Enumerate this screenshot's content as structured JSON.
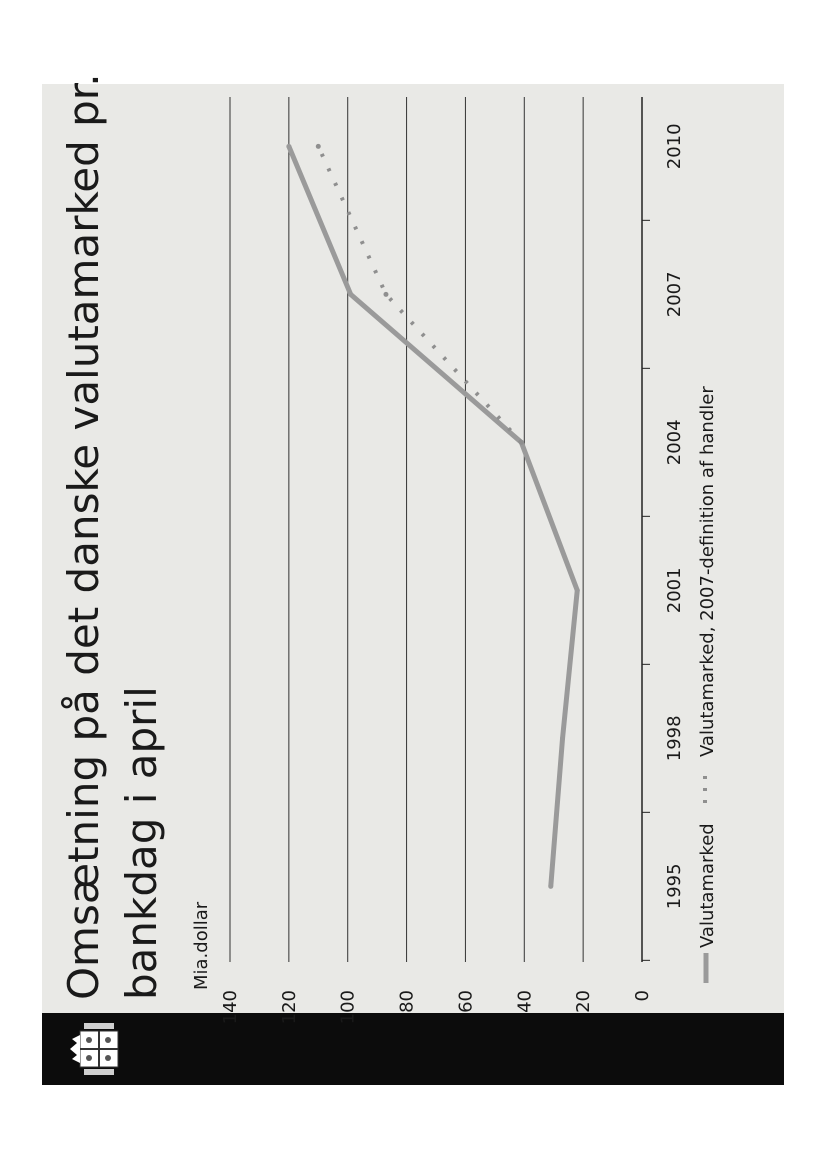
{
  "slide": {
    "title_line1": "Omsætning på det danske valutamarked pr.",
    "title_line2": "bankdag i april"
  },
  "chart_data": {
    "type": "line",
    "title": "Omsætning på det danske valutamarked pr. bankdag i april",
    "ylabel": "Mia.dollar",
    "xlabel": "",
    "ylim": [
      0,
      140
    ],
    "yticks": [
      0,
      20,
      40,
      60,
      80,
      100,
      120,
      140
    ],
    "xlim": [
      1993,
      2011
    ],
    "xticks": [
      1995,
      1998,
      2001,
      2004,
      2007,
      2010
    ],
    "grid": true,
    "legend_position": "bottom",
    "colors": {
      "valutamarked": "#9a9a9a",
      "definition_2007": "#8f8f8f",
      "grid": "#333333",
      "background": "#e9e9e6",
      "band": "#0c0c0c"
    },
    "series": [
      {
        "name": "Valutamarked",
        "style": "solid",
        "x": [
          1995,
          1998,
          2001,
          2004,
          2007,
          2010
        ],
        "y": [
          31,
          27,
          22,
          41,
          99,
          120
        ]
      },
      {
        "name": "Valutamarked, 2007-definition af handler",
        "style": "dotted",
        "x": [
          2004,
          2007,
          2010
        ],
        "y": [
          41,
          87,
          110
        ]
      }
    ]
  }
}
